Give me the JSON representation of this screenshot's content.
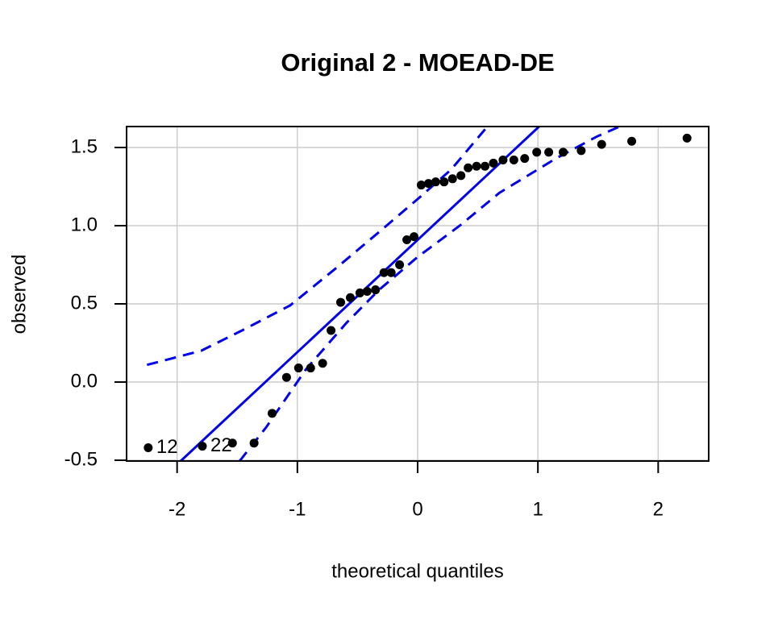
{
  "chart_data": {
    "type": "scatter",
    "title": "Original 2 - MOEAD-DE",
    "xlabel": "theoretical quantiles",
    "ylabel": "observed",
    "xlim": [
      -2.42,
      2.42
    ],
    "ylim": [
      -0.505,
      1.634
    ],
    "xticks": [
      -2,
      -1,
      0,
      1,
      2
    ],
    "yticks": [
      {
        "value": -0.5,
        "label": "-0.5"
      },
      {
        "value": 0,
        "label": "0.0"
      },
      {
        "value": 0.5,
        "label": "0.5"
      },
      {
        "value": 1,
        "label": "1.0"
      },
      {
        "value": 1.5,
        "label": "1.5"
      }
    ],
    "grid": true,
    "color": "#000000",
    "x": [
      -2.24,
      -1.79,
      -1.54,
      -1.36,
      -1.21,
      -1.09,
      -0.99,
      -0.89,
      -0.79,
      -0.72,
      -0.64,
      -0.56,
      -0.48,
      -0.42,
      -0.35,
      -0.28,
      -0.22,
      -0.15,
      -0.09,
      -0.03,
      0.03,
      0.09,
      0.15,
      0.22,
      0.29,
      0.36,
      0.42,
      0.49,
      0.56,
      0.63,
      0.71,
      0.8,
      0.89,
      0.99,
      1.09,
      1.21,
      1.36,
      1.53,
      1.78,
      2.24
    ],
    "y": [
      -0.42,
      -0.41,
      -0.39,
      -0.39,
      -0.2,
      0.03,
      0.09,
      0.09,
      0.12,
      0.33,
      0.51,
      0.54,
      0.57,
      0.58,
      0.59,
      0.7,
      0.7,
      0.75,
      0.91,
      0.93,
      1.26,
      1.27,
      1.28,
      1.28,
      1.3,
      1.32,
      1.37,
      1.38,
      1.38,
      1.4,
      1.42,
      1.42,
      1.43,
      1.47,
      1.47,
      1.47,
      1.48,
      1.52,
      1.54,
      1.56
    ],
    "point_labels": [
      "12",
      "22",
      null,
      null,
      null,
      null,
      null,
      null,
      null,
      null,
      null,
      null,
      null,
      null,
      null,
      null,
      null,
      null,
      null,
      null,
      null,
      null,
      null,
      null,
      null,
      null,
      null,
      null,
      null,
      null,
      null,
      null,
      null,
      null,
      null,
      null,
      null,
      null,
      null,
      null
    ],
    "reference_line": {
      "color": "#0000ee",
      "x": [
        -1.97,
        1.01
      ],
      "y": [
        -0.505,
        1.634
      ]
    },
    "envelope_upper": {
      "color": "#0000ee",
      "x": [
        -2.25,
        -1.8,
        -1.46,
        -1.06,
        -0.66,
        -0.32,
        0,
        0.28,
        0.58
      ],
      "y": [
        0.11,
        0.2,
        0.33,
        0.49,
        0.74,
        0.96,
        1.17,
        1.36,
        1.634
      ]
    },
    "envelope_lower": {
      "color": "#0000ee",
      "x": [
        -1.48,
        -1.26,
        -0.93,
        -0.59,
        -0.32,
        0,
        0.35,
        0.68,
        1.15,
        1.49,
        1.68
      ],
      "y": [
        -0.505,
        -0.29,
        0.08,
        0.38,
        0.59,
        0.8,
        1.0,
        1.21,
        1.43,
        1.57,
        1.634
      ]
    }
  }
}
